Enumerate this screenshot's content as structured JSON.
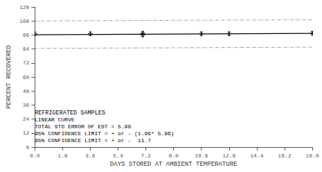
{
  "chart_data": {
    "type": "scatter",
    "xlabel": "DAYS STORED AT AMBIENT TEMPERATURE",
    "ylabel": "PERCENT RECOVERED",
    "xlim": [
      0.0,
      18.0
    ],
    "ylim": [
      0,
      120
    ],
    "xticks": [
      {
        "value": 0.0,
        "label": "0.0"
      },
      1.8,
      3.6,
      5.4,
      7.2,
      {
        "value": 9.0,
        "label": "9.0"
      },
      10.8,
      12.6,
      14.4,
      16.2,
      {
        "value": 18.0,
        "label": "18.0"
      }
    ],
    "yticks": [
      0,
      12,
      24,
      36,
      48,
      60,
      72,
      84,
      96,
      108,
      120
    ],
    "grid": false,
    "series": [
      {
        "type": "line",
        "line_style": "dashdot",
        "color": "#888888",
        "x": [
          0.0,
          18.0
        ],
        "values": [
          108.0,
          109.0
        ]
      },
      {
        "type": "line",
        "line_style": "dashdot",
        "color": "#888888",
        "x": [
          0.0,
          18.0
        ],
        "values": [
          84.5,
          85.5
        ]
      },
      {
        "type": "line",
        "line_style": "solid",
        "color": "#000000",
        "x": [
          0.0,
          18.0
        ],
        "values": [
          96.2,
          97.3
        ]
      },
      {
        "type": "scatter",
        "marker": "plus",
        "color": "#000000",
        "x": [
          0.0,
          3.6,
          7.0,
          7.0,
          10.8,
          12.6,
          18.0
        ],
        "values": [
          97.0,
          97.0,
          97.5,
          96.0,
          97.0,
          97.0,
          97.5
        ],
        "yerr": 1.5
      }
    ],
    "annotations": [
      "REFRIGERATED SAMPLES",
      "LINEAR CURVE",
      "TOTAL STD ERROR OF EST = 5.96",
      "95% CONFIDENCE LIMIT = + or - (1.96* 5.96)",
      "95% CONFIDENCE LIMIT = + or -  11.7"
    ]
  }
}
